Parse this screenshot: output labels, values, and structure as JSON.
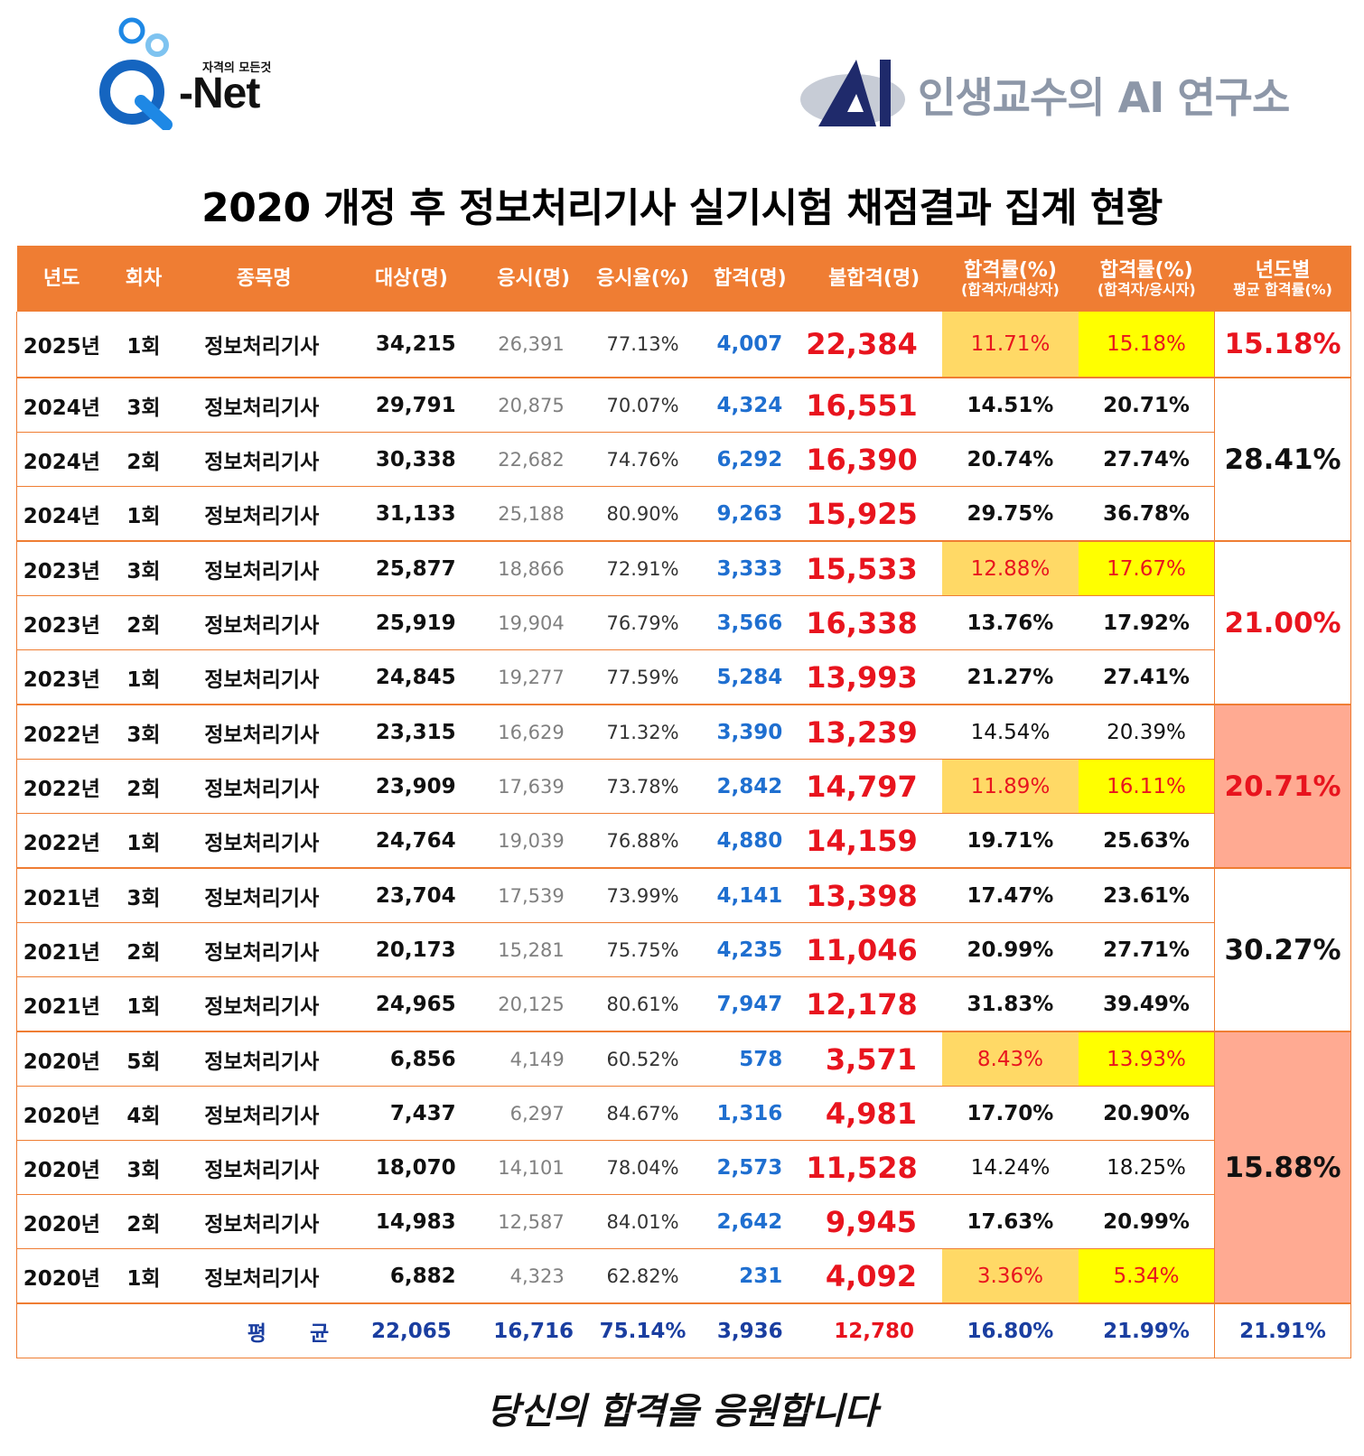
{
  "logos": {
    "qnet": {
      "word": "-Net",
      "tagline": "자격의 모든것"
    },
    "ai_lab": {
      "text": "인생교수의 AI 연구소"
    }
  },
  "title": "2020 개정 후 정보처리기사 실기시험 채점결과 집계 현황",
  "colors": {
    "header": "#ef7d33",
    "fail": "#e8141e",
    "pass": "#1f6fd0",
    "low1": "#ffd966",
    "low2": "#ffff00",
    "salmon": "#ffaa92"
  },
  "headers": {
    "year": "년도",
    "round": "회차",
    "name": "종목명",
    "target": "대상(명)",
    "exam": "응시(명)",
    "exam_rate": "응시율(%)",
    "pass": "합격(명)",
    "fail": "불합격(명)",
    "rate1": "합격률(%)",
    "rate1_sub": "(합격자/대상자)",
    "rate2": "합격률(%)",
    "rate2_sub": "(합격자/응시자)",
    "avg": "년도별",
    "avg_sub": "평균 합격률(%)"
  },
  "rows": [
    {
      "year": "2025년",
      "round": "1회",
      "name": "정보처리기사",
      "target": "34,215",
      "exam": "26,391",
      "exam_rate": "77.13%",
      "pass": "4,007",
      "fail": "22,384",
      "rate1": "11.71%",
      "rate2": "15.18%"
    },
    {
      "year": "2024년",
      "round": "3회",
      "name": "정보처리기사",
      "target": "29,791",
      "exam": "20,875",
      "exam_rate": "70.07%",
      "pass": "4,324",
      "fail": "16,551",
      "rate1": "14.51%",
      "rate2": "20.71%"
    },
    {
      "year": "2024년",
      "round": "2회",
      "name": "정보처리기사",
      "target": "30,338",
      "exam": "22,682",
      "exam_rate": "74.76%",
      "pass": "6,292",
      "fail": "16,390",
      "rate1": "20.74%",
      "rate2": "27.74%"
    },
    {
      "year": "2024년",
      "round": "1회",
      "name": "정보처리기사",
      "target": "31,133",
      "exam": "25,188",
      "exam_rate": "80.90%",
      "pass": "9,263",
      "fail": "15,925",
      "rate1": "29.75%",
      "rate2": "36.78%"
    },
    {
      "year": "2023년",
      "round": "3회",
      "name": "정보처리기사",
      "target": "25,877",
      "exam": "18,866",
      "exam_rate": "72.91%",
      "pass": "3,333",
      "fail": "15,533",
      "rate1": "12.88%",
      "rate2": "17.67%"
    },
    {
      "year": "2023년",
      "round": "2회",
      "name": "정보처리기사",
      "target": "25,919",
      "exam": "19,904",
      "exam_rate": "76.79%",
      "pass": "3,566",
      "fail": "16,338",
      "rate1": "13.76%",
      "rate2": "17.92%"
    },
    {
      "year": "2023년",
      "round": "1회",
      "name": "정보처리기사",
      "target": "24,845",
      "exam": "19,277",
      "exam_rate": "77.59%",
      "pass": "5,284",
      "fail": "13,993",
      "rate1": "21.27%",
      "rate2": "27.41%"
    },
    {
      "year": "2022년",
      "round": "3회",
      "name": "정보처리기사",
      "target": "23,315",
      "exam": "16,629",
      "exam_rate": "71.32%",
      "pass": "3,390",
      "fail": "13,239",
      "rate1": "14.54%",
      "rate2": "20.39%"
    },
    {
      "year": "2022년",
      "round": "2회",
      "name": "정보처리기사",
      "target": "23,909",
      "exam": "17,639",
      "exam_rate": "73.78%",
      "pass": "2,842",
      "fail": "14,797",
      "rate1": "11.89%",
      "rate2": "16.11%"
    },
    {
      "year": "2022년",
      "round": "1회",
      "name": "정보처리기사",
      "target": "24,764",
      "exam": "19,039",
      "exam_rate": "76.88%",
      "pass": "4,880",
      "fail": "14,159",
      "rate1": "19.71%",
      "rate2": "25.63%"
    },
    {
      "year": "2021년",
      "round": "3회",
      "name": "정보처리기사",
      "target": "23,704",
      "exam": "17,539",
      "exam_rate": "73.99%",
      "pass": "4,141",
      "fail": "13,398",
      "rate1": "17.47%",
      "rate2": "23.61%"
    },
    {
      "year": "2021년",
      "round": "2회",
      "name": "정보처리기사",
      "target": "20,173",
      "exam": "15,281",
      "exam_rate": "75.75%",
      "pass": "4,235",
      "fail": "11,046",
      "rate1": "20.99%",
      "rate2": "27.71%"
    },
    {
      "year": "2021년",
      "round": "1회",
      "name": "정보처리기사",
      "target": "24,965",
      "exam": "20,125",
      "exam_rate": "80.61%",
      "pass": "7,947",
      "fail": "12,178",
      "rate1": "31.83%",
      "rate2": "39.49%"
    },
    {
      "year": "2020년",
      "round": "5회",
      "name": "정보처리기사",
      "target": "6,856",
      "exam": "4,149",
      "exam_rate": "60.52%",
      "pass": "578",
      "fail": "3,571",
      "rate1": "8.43%",
      "rate2": "13.93%"
    },
    {
      "year": "2020년",
      "round": "4회",
      "name": "정보처리기사",
      "target": "7,437",
      "exam": "6,297",
      "exam_rate": "84.67%",
      "pass": "1,316",
      "fail": "4,981",
      "rate1": "17.70%",
      "rate2": "20.90%"
    },
    {
      "year": "2020년",
      "round": "3회",
      "name": "정보처리기사",
      "target": "18,070",
      "exam": "14,101",
      "exam_rate": "78.04%",
      "pass": "2,573",
      "fail": "11,528",
      "rate1": "14.24%",
      "rate2": "18.25%"
    },
    {
      "year": "2020년",
      "round": "2회",
      "name": "정보처리기사",
      "target": "14,983",
      "exam": "12,587",
      "exam_rate": "84.01%",
      "pass": "2,642",
      "fail": "9,945",
      "rate1": "17.63%",
      "rate2": "20.99%"
    },
    {
      "year": "2020년",
      "round": "1회",
      "name": "정보처리기사",
      "target": "6,882",
      "exam": "4,323",
      "exam_rate": "62.82%",
      "pass": "231",
      "fail": "4,092",
      "rate1": "3.36%",
      "rate2": "5.34%"
    }
  ],
  "year_averages": [
    "15.18%",
    "28.41%",
    "21.00%",
    "20.71%",
    "30.27%",
    "15.88%"
  ],
  "summary": {
    "label": "평 균",
    "target": "22,065",
    "exam": "16,716",
    "exam_rate": "75.14%",
    "pass": "3,936",
    "fail": "12,780",
    "rate1": "16.80%",
    "rate2": "21.99%",
    "avg": "21.91%"
  },
  "footer": "당신의 합격을 응원합니다"
}
